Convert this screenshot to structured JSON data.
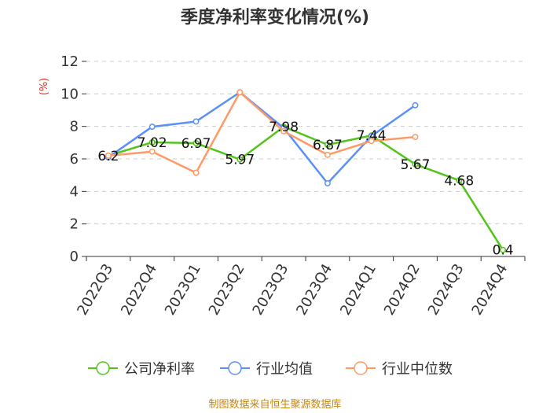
{
  "chart_data": {
    "type": "line",
    "title": "季度净利率变化情况(%)",
    "xlabel": "",
    "ylabel": "(%)",
    "ylim": [
      0,
      12
    ],
    "yticks": [
      0,
      2,
      4,
      6,
      8,
      10,
      12
    ],
    "grid": "horizontal-dashed",
    "legend_position": "bottom",
    "categories": [
      "2022Q3",
      "2022Q4",
      "2023Q1",
      "2023Q2",
      "2023Q3",
      "2023Q4",
      "2024Q1",
      "2024Q2",
      "2024Q3",
      "2024Q4"
    ],
    "series": [
      {
        "name": "公司净利率",
        "color": "#52c41a",
        "values": [
          6.2,
          7.02,
          6.97,
          5.97,
          7.98,
          6.87,
          7.44,
          5.67,
          4.68,
          0.4
        ],
        "data_labels": [
          "6.2",
          "7.02",
          "6.97",
          "5.97",
          "7.98",
          "6.87",
          "7.44",
          "5.67",
          "4.68",
          "0.4"
        ]
      },
      {
        "name": "行业均值",
        "color": "#5b8ff9",
        "values": [
          6.1,
          7.98,
          8.3,
          10.1,
          7.9,
          4.5,
          7.4,
          9.3,
          null,
          null
        ]
      },
      {
        "name": "行业中位数",
        "color": "#ff9966",
        "values": [
          6.2,
          6.45,
          5.15,
          10.1,
          7.7,
          6.25,
          7.1,
          7.35,
          null,
          null
        ]
      }
    ],
    "source": "制图数据来自恒生聚源数据库"
  }
}
